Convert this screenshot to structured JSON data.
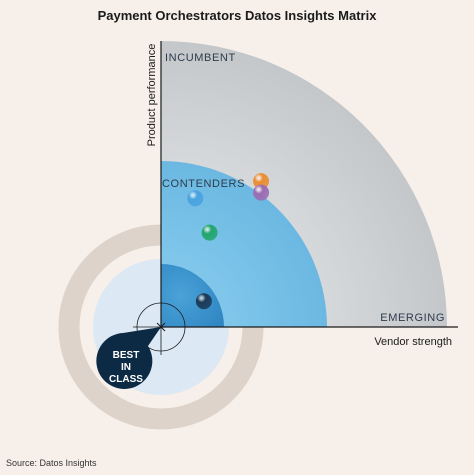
{
  "chart_data": {
    "type": "scatter",
    "title": "Payment Orchestrators Datos Insights Matrix",
    "xlabel": "Vendor strength",
    "ylabel": "Product performance",
    "zones": [
      "INCUMBENT",
      "CONTENDERS",
      "EMERGING",
      "BEST IN CLASS"
    ],
    "xlim": [
      0,
      100
    ],
    "ylim": [
      0,
      100
    ],
    "points": [
      {
        "x": 35,
        "y": 51,
        "color": "#e98d33"
      },
      {
        "x": 35,
        "y": 47,
        "color": "#9b6bb3"
      },
      {
        "x": 12,
        "y": 45,
        "color": "#4aa3df"
      },
      {
        "x": 17,
        "y": 33,
        "color": "#23a56d"
      },
      {
        "x": 15,
        "y": 9,
        "color": "#1b3a57"
      }
    ]
  },
  "source": "Source: Datos Insights",
  "colors": {
    "incumbent": "#cfd1d3",
    "contenders": "#7cc3e8",
    "emerging": "#3a8fcc",
    "best_badge": "#0d2a45",
    "ring": "#ddd3ca",
    "inner_disc": "#dce8f4"
  }
}
